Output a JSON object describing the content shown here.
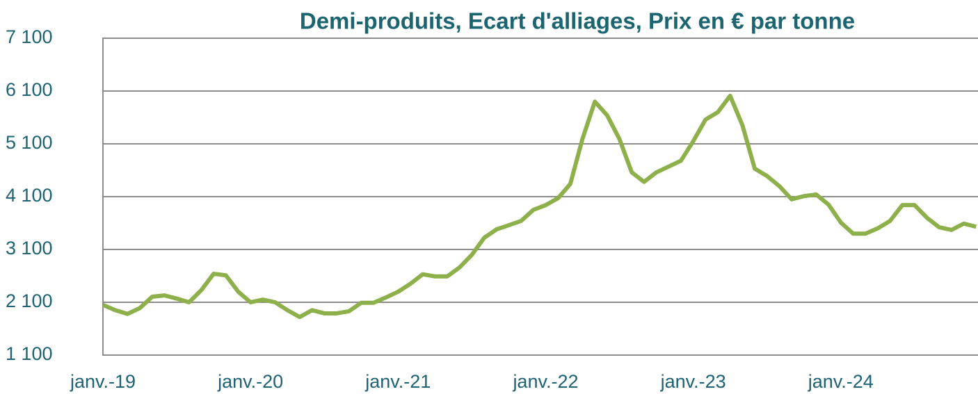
{
  "chart_data": {
    "type": "line",
    "title": "Demi-produits, Ecart d'alliages, Prix en € par tonne",
    "categories": [
      "janv.-19",
      null,
      null,
      null,
      null,
      null,
      null,
      null,
      null,
      null,
      null,
      null,
      "janv.-20",
      null,
      null,
      null,
      null,
      null,
      null,
      null,
      null,
      null,
      null,
      null,
      "janv.-21",
      null,
      null,
      null,
      null,
      null,
      null,
      null,
      null,
      null,
      null,
      null,
      "janv.-22",
      null,
      null,
      null,
      null,
      null,
      null,
      null,
      null,
      null,
      null,
      null,
      "janv.-23",
      null,
      null,
      null,
      null,
      null,
      null,
      null,
      null,
      null,
      null,
      null,
      "janv.-24",
      null,
      null,
      null,
      null,
      null,
      null,
      null,
      null,
      null,
      null,
      null
    ],
    "series": [
      {
        "name": "Ecart d'alliages",
        "color": "#8db04a",
        "values": [
          2050,
          1950,
          1880,
          1990,
          2205,
          2230,
          2170,
          2100,
          2330,
          2640,
          2610,
          2300,
          2100,
          2150,
          2100,
          1950,
          1820,
          1950,
          1890,
          1890,
          1930,
          2090,
          2090,
          2190,
          2300,
          2450,
          2630,
          2590,
          2590,
          2760,
          3000,
          3320,
          3480,
          3560,
          3640,
          3850,
          3940,
          4070,
          4340,
          5200,
          5900,
          5640,
          5190,
          4560,
          4380,
          4560,
          4670,
          4780,
          5150,
          5560,
          5700,
          6010,
          5450,
          4630,
          4490,
          4300,
          4050,
          4110,
          4140,
          3950,
          3610,
          3400,
          3400,
          3500,
          3640,
          3940,
          3940,
          3700,
          3520,
          3470,
          3590,
          3530
        ]
      }
    ],
    "ylim": [
      1100,
      7100
    ],
    "yticks": [
      {
        "value": 1100,
        "label": "1 100"
      },
      {
        "value": 2100,
        "label": "2 100"
      },
      {
        "value": 3100,
        "label": "3 100"
      },
      {
        "value": 4100,
        "label": "4 100"
      },
      {
        "value": 5100,
        "label": "5 100"
      },
      {
        "value": 6100,
        "label": "6 100"
      },
      {
        "value": 7100,
        "label": "7 100"
      }
    ],
    "grid": true
  }
}
